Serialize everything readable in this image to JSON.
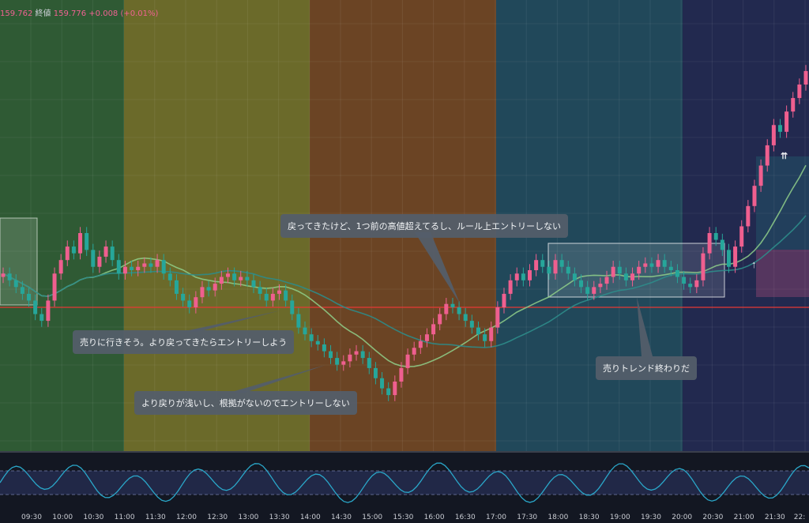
{
  "legend": {
    "prev_value": "159.762",
    "close_label": "終値",
    "close_value": "159.776",
    "change": "+0.008 (+0.01%)"
  },
  "annotations": {
    "note1": "売りに行きそう。より戻ってきたらエントリーしよう",
    "note2": "より戻りが浅いし、根拠がないのでエントリーしない",
    "note3": "戻ってきたけど、1つ前の高値超えてるし、ルール上エントリーしない",
    "note4": "売りトレンド終わりだ"
  },
  "x_axis": {
    "ticks": [
      "09:30",
      "10:00",
      "10:30",
      "11:00",
      "11:30",
      "12:00",
      "12:30",
      "13:00",
      "13:30",
      "14:00",
      "14:30",
      "15:00",
      "15:30",
      "16:00",
      "16:30",
      "17:00",
      "17:30",
      "18:00",
      "18:30",
      "19:00",
      "19:30",
      "20:00",
      "20:30",
      "21:00",
      "21:30",
      "22:"
    ]
  },
  "colors": {
    "background": "#131722",
    "up_candle": "#ef5f8f",
    "down_candle": "#26a69a",
    "ma_fast": "#8fcf8a",
    "ma_slow": "#2e8c8a",
    "level_line": "#e53935",
    "oscillator": "#2aa7c9",
    "session_1": "#2f5a34",
    "session_2": "#6b6a2a",
    "session_3": "#6b4424",
    "session_4": "#21485a",
    "session_5": "#22294f"
  },
  "chart_data": {
    "type": "candlestick",
    "x_range": [
      "09:00",
      "22:00"
    ],
    "y_range_note": "price in JPY, horizontal red level near 159.70",
    "closes": [
      159.78,
      159.76,
      159.74,
      159.72,
      159.7,
      159.66,
      159.64,
      159.7,
      159.78,
      159.82,
      159.86,
      159.84,
      159.9,
      159.85,
      159.8,
      159.83,
      159.86,
      159.82,
      159.78,
      159.8,
      159.79,
      159.8,
      159.81,
      159.8,
      159.82,
      159.78,
      159.76,
      159.72,
      159.7,
      159.68,
      159.71,
      159.74,
      159.73,
      159.75,
      159.77,
      159.78,
      159.76,
      159.77,
      159.76,
      159.74,
      159.72,
      159.7,
      159.72,
      159.73,
      159.7,
      159.66,
      159.62,
      159.6,
      159.58,
      159.57,
      159.55,
      159.53,
      159.51,
      159.52,
      159.54,
      159.55,
      159.53,
      159.5,
      159.47,
      159.44,
      159.42,
      159.46,
      159.5,
      159.54,
      159.56,
      159.58,
      159.6,
      159.63,
      159.66,
      159.69,
      159.68,
      159.66,
      159.64,
      159.62,
      159.6,
      159.58,
      159.62,
      159.68,
      159.72,
      159.76,
      159.78,
      159.76,
      159.79,
      159.82,
      159.8,
      159.78,
      159.82,
      159.8,
      159.78,
      159.76,
      159.74,
      159.72,
      159.74,
      159.75,
      159.77,
      159.8,
      159.78,
      159.76,
      159.78,
      159.8,
      159.81,
      159.8,
      159.82,
      159.8,
      159.79,
      159.77,
      159.75,
      159.74,
      159.76,
      159.84,
      159.9,
      159.88,
      159.85,
      159.8,
      159.86,
      159.92,
      159.98,
      160.04,
      160.1,
      160.16,
      160.22,
      160.2,
      160.26,
      160.3,
      160.34,
      160.38
    ]
  }
}
